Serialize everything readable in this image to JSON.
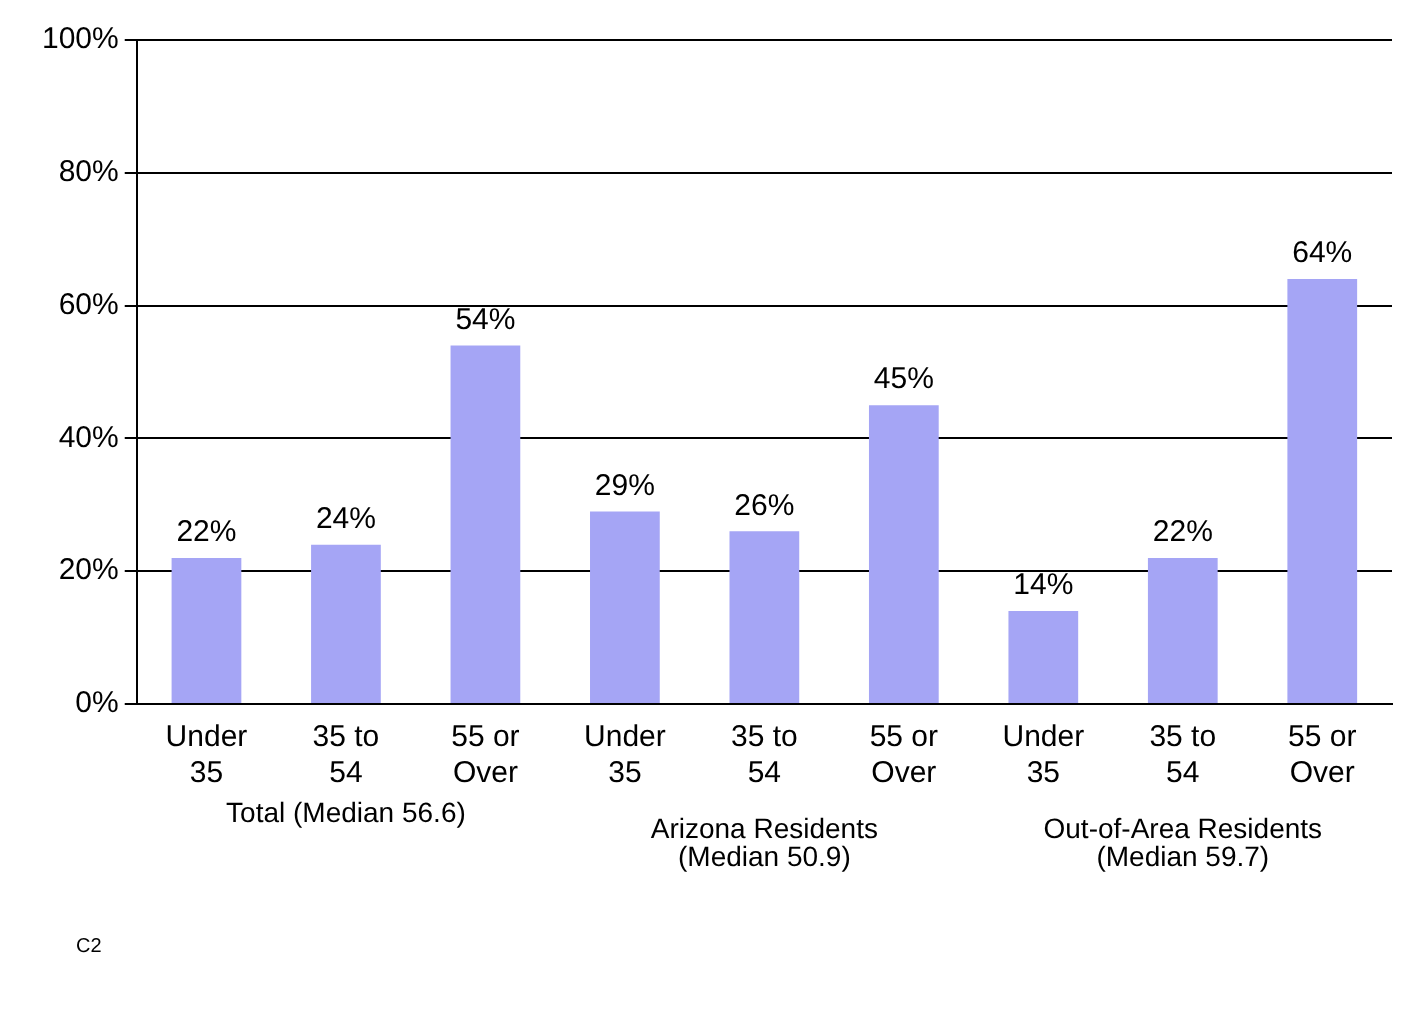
{
  "chart_data": {
    "type": "bar",
    "categories": [
      "Under 35",
      "35 to 54",
      "55 or Over",
      "Under 35",
      "35 to 54",
      "55 or Over",
      "Under 35",
      "35 to 54",
      "55 or Over"
    ],
    "values": [
      22,
      24,
      54,
      29,
      26,
      45,
      14,
      22,
      64
    ],
    "color": "#a5a5f5",
    "value_labels": [
      "22%",
      "24%",
      "54%",
      "29%",
      "26%",
      "45%",
      "14%",
      "22%",
      "64%"
    ],
    "ylim": [
      0,
      100
    ],
    "yticks": [
      {
        "value": 0,
        "label": "0%"
      },
      {
        "value": 20,
        "label": "20%"
      },
      {
        "value": 40,
        "label": "40%"
      },
      {
        "value": 60,
        "label": "60%"
      },
      {
        "value": 80,
        "label": "80%"
      },
      {
        "value": 100,
        "label": "100%"
      }
    ],
    "grid": "y",
    "annotations": [
      "Total (Median 56.6)",
      "Arizona Residents (Median 50.9)",
      "Out-of-Area Residents (Median 59.7)",
      "C2"
    ]
  }
}
